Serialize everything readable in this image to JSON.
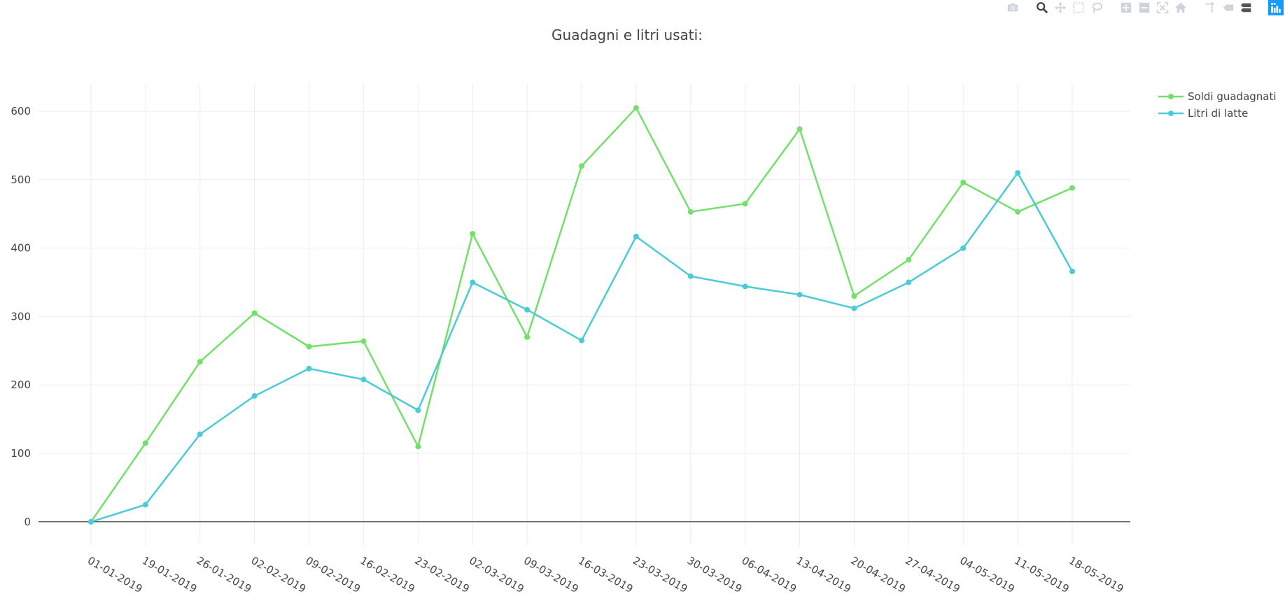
{
  "modebar": {
    "buttons": [
      "camera-icon",
      "zoom-icon",
      "pan-icon",
      "box-select-icon",
      "lasso-select-icon",
      "zoom-in-icon",
      "zoom-out-icon",
      "autoscale-icon",
      "reset-axes-icon",
      "spike-lines-icon",
      "hover-closest-icon",
      "hover-compare-icon",
      "plotly-logo-icon"
    ],
    "active": "zoom-icon"
  },
  "chart_data": {
    "type": "line",
    "title": "Guadagni e litri usati:",
    "categories": [
      "01-01-2019",
      "19-01-2019",
      "26-01-2019",
      "02-02-2019",
      "09-02-2019",
      "16-02-2019",
      "23-02-2019",
      "02-03-2019",
      "09-03-2019",
      "16-03-2019",
      "23-03-2019",
      "30-03-2019",
      "06-04-2019",
      "13-04-2019",
      "20-04-2019",
      "27-04-2019",
      "04-05-2019",
      "11-05-2019",
      "18-05-2019"
    ],
    "series": [
      {
        "name": "Soldi guadagnati",
        "color": "#72e069",
        "values": [
          0,
          115,
          234,
          305,
          256,
          264,
          110,
          421,
          270,
          520,
          605,
          453,
          465,
          574,
          330,
          383,
          496,
          453,
          488
        ]
      },
      {
        "name": "Litri di latte",
        "color": "#4bcbd6",
        "values": [
          0,
          25,
          128,
          184,
          224,
          208,
          163,
          350,
          310,
          265,
          417,
          359,
          344,
          332,
          312,
          350,
          400,
          510,
          366
        ]
      }
    ],
    "yticks": [
      0,
      100,
      200,
      300,
      400,
      500,
      600
    ],
    "ylim": [
      -35,
      640
    ],
    "grid": true,
    "legend": "top-right"
  }
}
